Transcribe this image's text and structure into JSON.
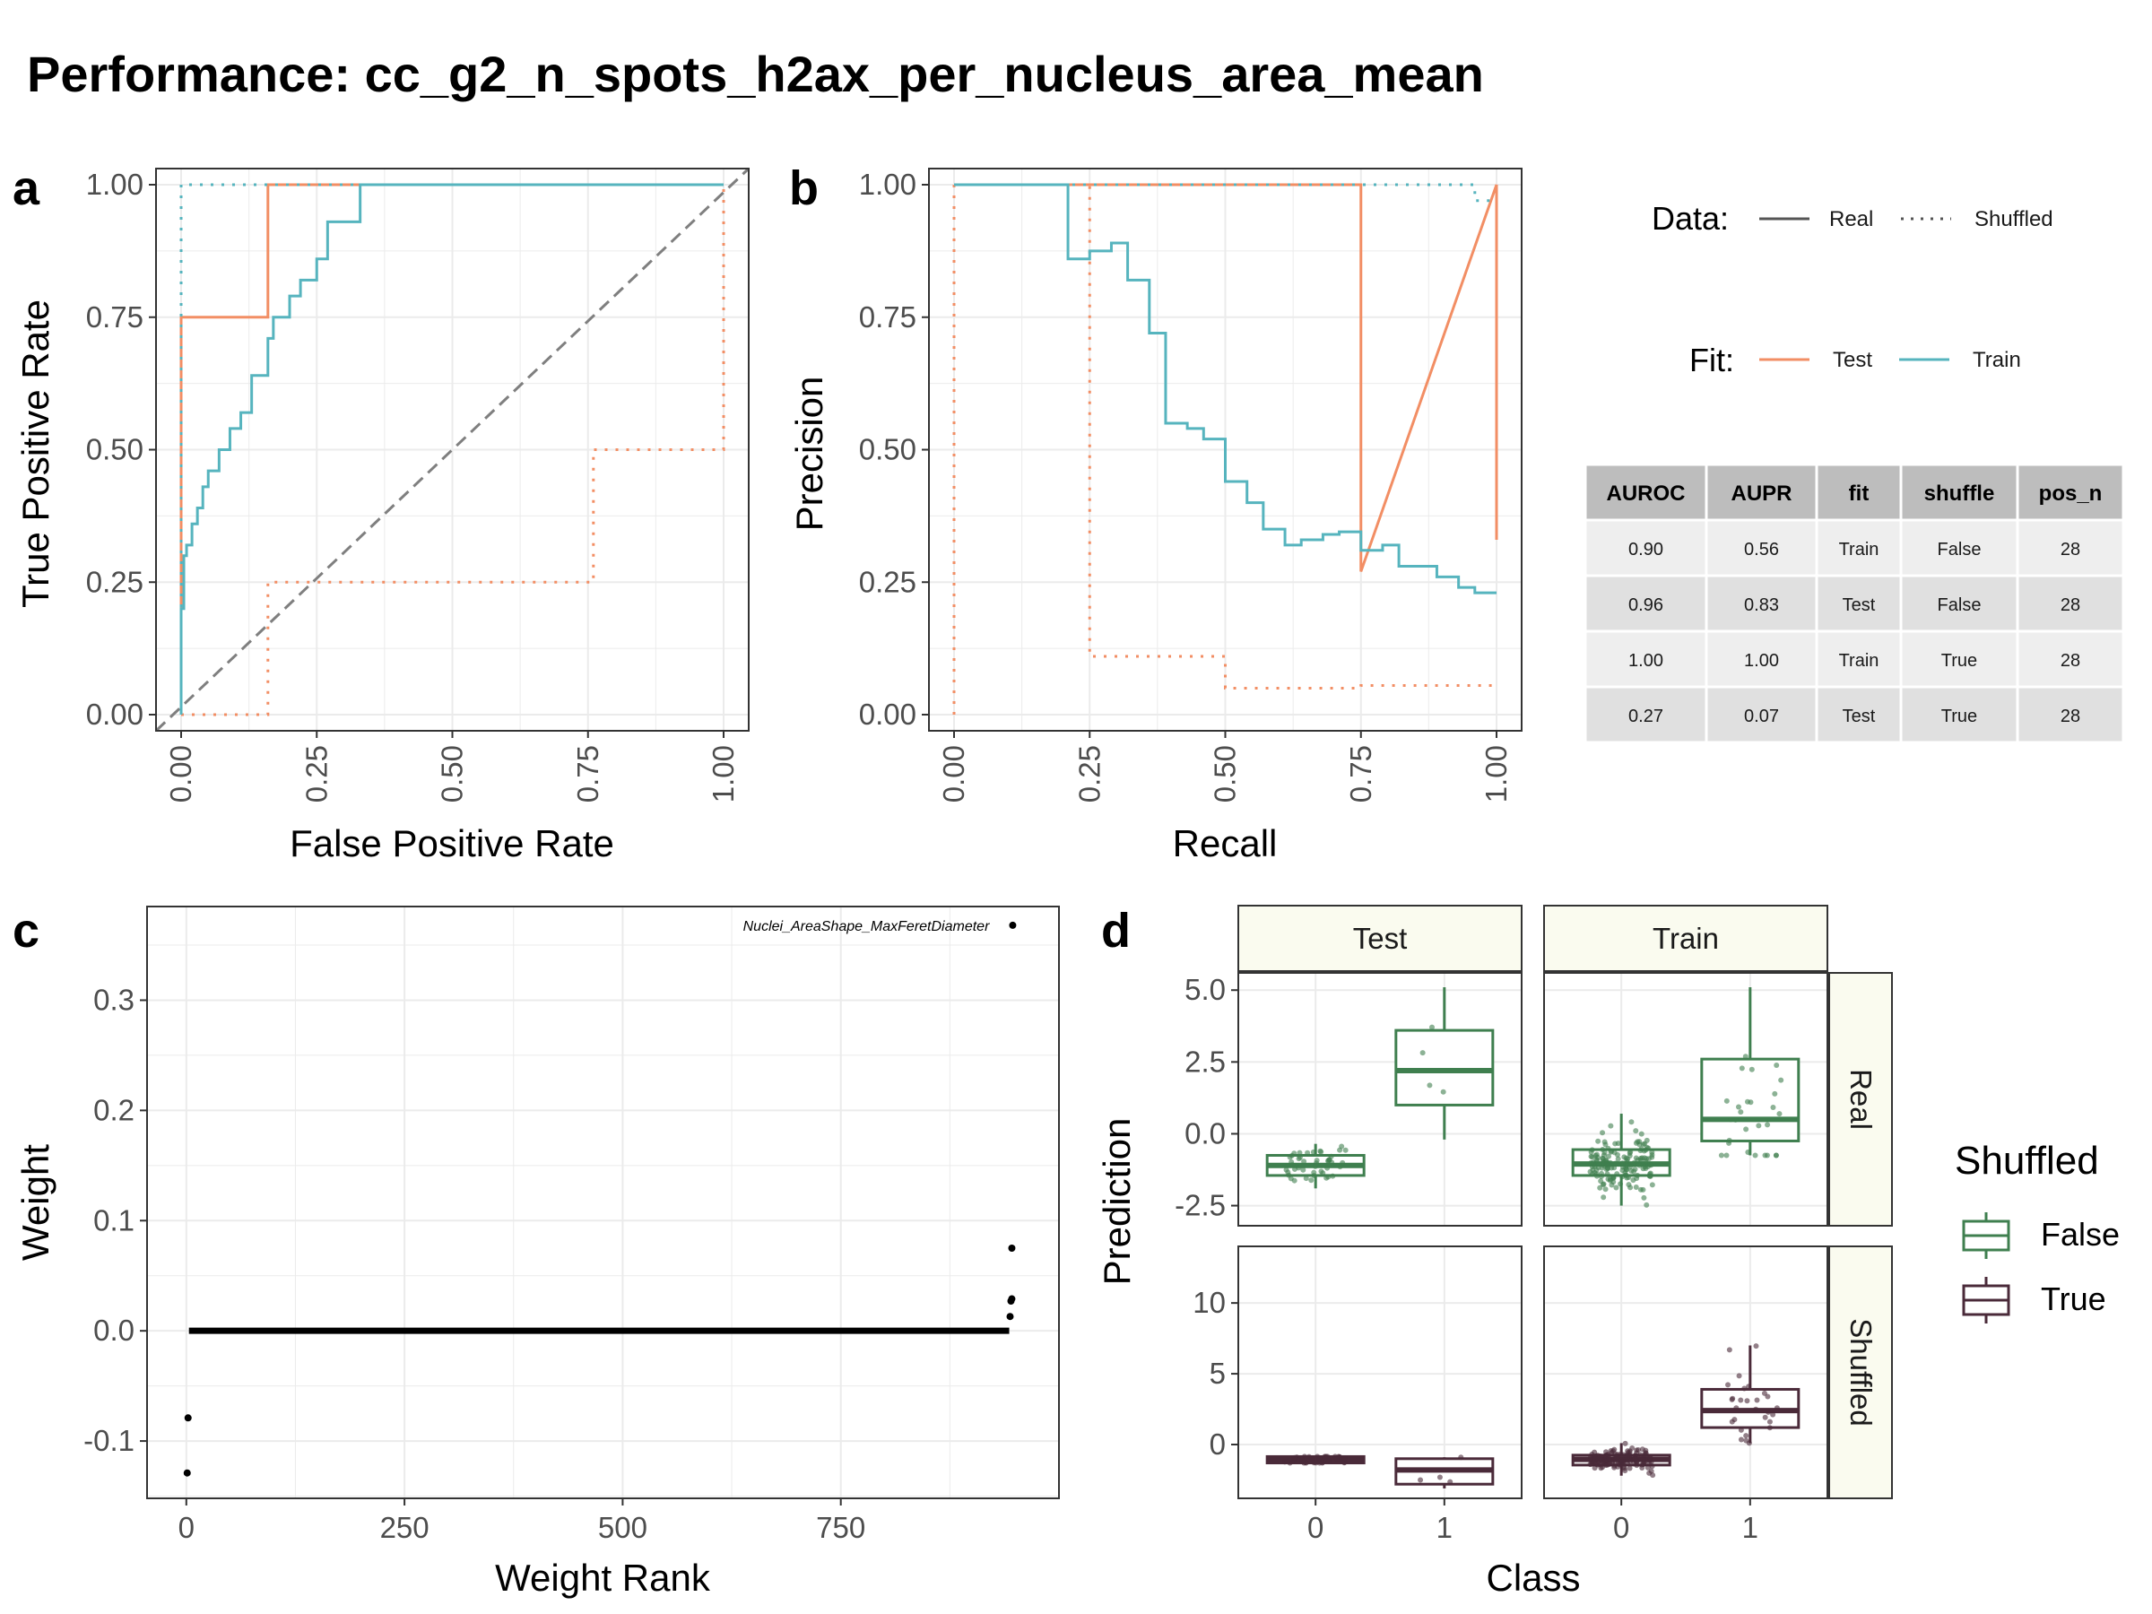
{
  "title": "Performance: cc_g2_n_spots_h2ax_per_nucleus_area_mean",
  "colors": {
    "test": "#F28E64",
    "train": "#56B4BE",
    "false_box": "#3F7F4F",
    "true_box": "#4A2A39",
    "diag": "#7F7F7F",
    "strip_fill": "#FAFBEF"
  },
  "legend": {
    "data_title": "Data:",
    "data_items": [
      "Real",
      "Shuffled"
    ],
    "fit_title": "Fit:",
    "fit_items": [
      "Test",
      "Train"
    ]
  },
  "table": {
    "columns": [
      "AUROC",
      "AUPR",
      "fit",
      "shuffle",
      "pos_n"
    ],
    "rows": [
      [
        "0.90",
        "0.56",
        "Train",
        "False",
        "28"
      ],
      [
        "0.96",
        "0.83",
        "Test",
        "False",
        "28"
      ],
      [
        "1.00",
        "1.00",
        "Train",
        "True",
        "28"
      ],
      [
        "0.27",
        "0.07",
        "Test",
        "True",
        "28"
      ]
    ]
  },
  "chart_data": [
    {
      "panel": "a",
      "type": "line",
      "xlabel": "False Positive Rate",
      "ylabel": "True Positive Rate",
      "xlim": [
        0,
        1
      ],
      "ylim": [
        0,
        1
      ],
      "xticks": [
        "0.00",
        "0.25",
        "0.50",
        "0.75",
        "1.00"
      ],
      "yticks": [
        "0.00",
        "0.25",
        "0.50",
        "0.75",
        "1.00"
      ],
      "grid": true,
      "reference_line": "diagonal",
      "series": [
        {
          "fit": "Test",
          "data": "Real",
          "x": [
            0,
            0,
            0.16,
            0.16,
            1
          ],
          "y": [
            0,
            0.75,
            0.75,
            1,
            1
          ]
        },
        {
          "fit": "Test",
          "data": "Shuffled",
          "x": [
            0,
            0.16,
            0.16,
            0.76,
            0.76,
            1,
            1
          ],
          "y": [
            0,
            0,
            0.25,
            0.25,
            0.5,
            0.5,
            1
          ]
        },
        {
          "fit": "Train",
          "data": "Real",
          "x": [
            0,
            0,
            0.005,
            0.005,
            0.01,
            0.01,
            0.02,
            0.02,
            0.03,
            0.03,
            0.04,
            0.04,
            0.05,
            0.05,
            0.07,
            0.07,
            0.09,
            0.09,
            0.11,
            0.11,
            0.13,
            0.13,
            0.16,
            0.16,
            0.17,
            0.17,
            0.2,
            0.2,
            0.22,
            0.22,
            0.25,
            0.25,
            0.27,
            0.27,
            0.33,
            0.33,
            1
          ],
          "y": [
            0,
            0.2,
            0.2,
            0.3,
            0.3,
            0.32,
            0.32,
            0.36,
            0.36,
            0.39,
            0.39,
            0.43,
            0.43,
            0.46,
            0.46,
            0.5,
            0.5,
            0.54,
            0.54,
            0.57,
            0.57,
            0.64,
            0.64,
            0.71,
            0.71,
            0.75,
            0.75,
            0.79,
            0.79,
            0.82,
            0.82,
            0.86,
            0.86,
            0.93,
            0.93,
            1,
            1
          ]
        },
        {
          "fit": "Train",
          "data": "Shuffled",
          "x": [
            0,
            0,
            1
          ],
          "y": [
            0,
            1,
            1
          ]
        }
      ]
    },
    {
      "panel": "b",
      "type": "line",
      "xlabel": "Recall",
      "ylabel": "Precision",
      "xlim": [
        0,
        1
      ],
      "ylim": [
        0,
        1
      ],
      "xticks": [
        "0.00",
        "0.25",
        "0.50",
        "0.75",
        "1.00"
      ],
      "yticks": [
        "0.00",
        "0.25",
        "0.50",
        "0.75",
        "1.00"
      ],
      "grid": true,
      "series": [
        {
          "fit": "Test",
          "data": "Real",
          "x": [
            0,
            0.75,
            0.75,
            1,
            1
          ],
          "y": [
            1,
            1,
            0.27,
            1,
            0.33
          ]
        },
        {
          "fit": "Test",
          "data": "Shuffled",
          "x": [
            0,
            0,
            0.25,
            0.25,
            0.5,
            0.5,
            0.75,
            0.75,
            1
          ],
          "y": [
            0,
            1,
            1,
            0.11,
            0.11,
            0.05,
            0.05,
            0.055,
            0.055
          ]
        },
        {
          "fit": "Train",
          "data": "Real",
          "x": [
            0,
            0.21,
            0.21,
            0.25,
            0.25,
            0.29,
            0.29,
            0.32,
            0.32,
            0.36,
            0.36,
            0.39,
            0.39,
            0.43,
            0.43,
            0.46,
            0.46,
            0.5,
            0.5,
            0.54,
            0.54,
            0.57,
            0.57,
            0.61,
            0.61,
            0.64,
            0.64,
            0.68,
            0.68,
            0.71,
            0.71,
            0.75,
            0.75,
            0.79,
            0.79,
            0.82,
            0.82,
            0.86,
            0.86,
            0.89,
            0.89,
            0.93,
            0.93,
            0.96,
            0.96,
            1
          ],
          "y": [
            1,
            1,
            0.86,
            0.86,
            0.875,
            0.875,
            0.89,
            0.89,
            0.82,
            0.82,
            0.72,
            0.72,
            0.55,
            0.55,
            0.54,
            0.54,
            0.52,
            0.52,
            0.44,
            0.44,
            0.4,
            0.4,
            0.35,
            0.35,
            0.32,
            0.32,
            0.33,
            0.33,
            0.34,
            0.34,
            0.345,
            0.345,
            0.31,
            0.31,
            0.32,
            0.32,
            0.28,
            0.28,
            0.28,
            0.28,
            0.26,
            0.26,
            0.24,
            0.24,
            0.23,
            0.23
          ]
        },
        {
          "fit": "Train",
          "data": "Shuffled",
          "x": [
            0,
            0.96,
            0.96,
            1
          ],
          "y": [
            1,
            1,
            0.97,
            0.97
          ]
        }
      ]
    },
    {
      "panel": "c",
      "type": "scatter",
      "xlabel": "Weight Rank",
      "ylabel": "Weight",
      "xticks": [
        "0",
        "250",
        "500",
        "750"
      ],
      "yticks": [
        "-0.1",
        "0.0",
        "0.1",
        "0.2",
        "0.3"
      ],
      "xlim": [
        -45,
        1000
      ],
      "ylim": [
        -0.152,
        0.385
      ],
      "grid": true,
      "annotation": {
        "text": "Nuclei_AreaShape_MaxFeretDiameter",
        "x": 947,
        "y": 0.368
      },
      "points": [
        [
          1,
          -0.129
        ],
        [
          2,
          -0.079
        ],
        [
          947,
          0.368
        ],
        [
          946,
          0.075
        ],
        [
          946,
          0.029
        ],
        [
          945,
          0.027
        ],
        [
          944,
          0.013
        ]
      ],
      "zero_band": {
        "x_from": 3,
        "x_to": 943,
        "y": 0
      }
    },
    {
      "panel": "d",
      "type": "box",
      "xlabel": "Class",
      "ylabel": "Prediction",
      "facet_cols": [
        "Test",
        "Train"
      ],
      "facet_rows": [
        "Real",
        "Shuffled"
      ],
      "legend_title": "Shuffled",
      "legend_items": [
        "False",
        "True"
      ],
      "row_scales": {
        "Real": {
          "ylim": [
            -3.2,
            5.6
          ],
          "ticks": [
            "-2.5",
            "0.0",
            "2.5",
            "5.0"
          ]
        },
        "Shuffled": {
          "ylim": [
            -3.8,
            14
          ],
          "ticks": [
            "0",
            "5",
            "10"
          ]
        }
      },
      "x_ticks": [
        "0",
        "1"
      ],
      "boxes": [
        {
          "facet": "Test",
          "row": "Real",
          "class": "0",
          "q1": -1.45,
          "median": -1.1,
          "q3": -0.75,
          "low": -1.9,
          "high": -0.35
        },
        {
          "facet": "Test",
          "row": "Real",
          "class": "1",
          "q1": 1.0,
          "median": 2.2,
          "q3": 3.6,
          "low": -0.2,
          "high": 5.1
        },
        {
          "facet": "Train",
          "row": "Real",
          "class": "0",
          "q1": -1.45,
          "median": -1.05,
          "q3": -0.55,
          "low": -2.5,
          "high": 0.7
        },
        {
          "facet": "Train",
          "row": "Real",
          "class": "1",
          "q1": -0.25,
          "median": 0.5,
          "q3": 2.6,
          "low": -0.75,
          "high": 5.1
        },
        {
          "facet": "Test",
          "row": "Shuffled",
          "class": "0",
          "q1": -1.3,
          "median": -1.05,
          "q3": -0.85,
          "low": -1.3,
          "high": -0.85
        },
        {
          "facet": "Test",
          "row": "Shuffled",
          "class": "1",
          "q1": -2.8,
          "median": -1.8,
          "q3": -1.0,
          "low": -3.1,
          "high": -0.9
        },
        {
          "facet": "Train",
          "row": "Shuffled",
          "class": "0",
          "q1": -1.45,
          "median": -1.05,
          "q3": -0.75,
          "low": -2.2,
          "high": 0.1
        },
        {
          "facet": "Train",
          "row": "Shuffled",
          "class": "1",
          "q1": 1.2,
          "median": 2.4,
          "q3": 3.9,
          "low": 0.1,
          "high": 7.0
        }
      ]
    }
  ],
  "panel_letters": [
    "a",
    "b",
    "c",
    "d"
  ]
}
